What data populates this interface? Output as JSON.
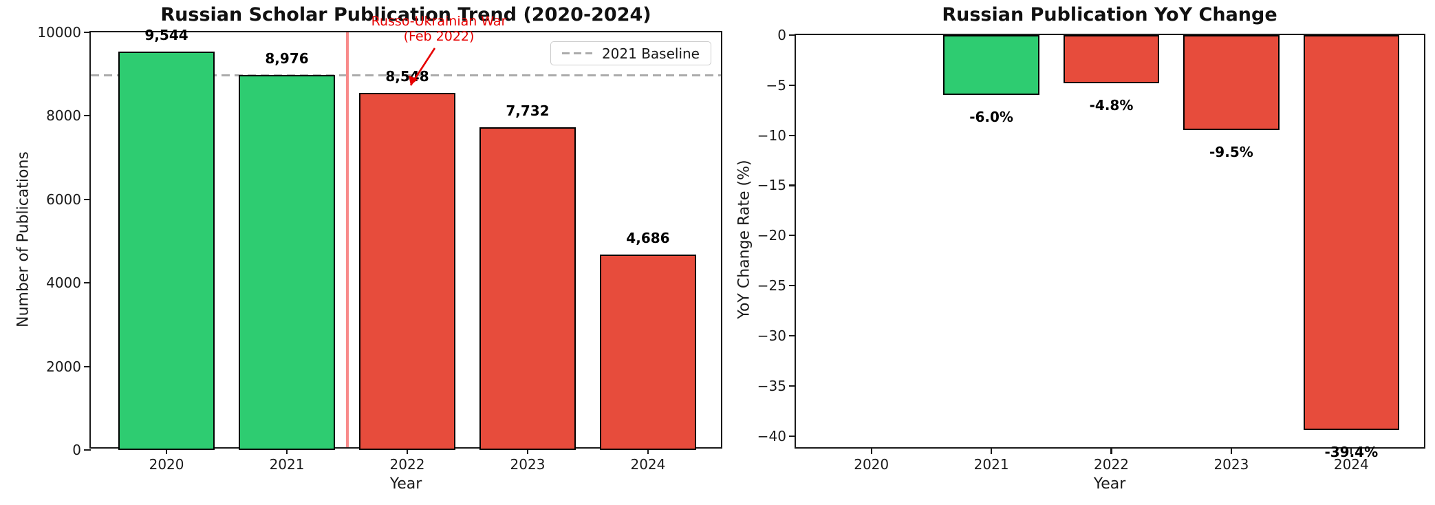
{
  "figure": {
    "background": "#ffffff",
    "accent_green": "#2ecc71",
    "accent_red": "#e74c3c",
    "annotation_red": "#e60000",
    "event_line_red": "#f88a8a",
    "baseline_gray": "#ababab"
  },
  "chart_data": [
    {
      "type": "bar",
      "title": "Russian Scholar Publication Trend (2020-2024)",
      "xlabel": "Year",
      "ylabel": "Number of Publications",
      "categories": [
        "2020",
        "2021",
        "2022",
        "2023",
        "2024"
      ],
      "values": [
        9544,
        8976,
        8548,
        7732,
        4686
      ],
      "value_labels": [
        "9,544",
        "8,976",
        "8,548",
        "7,732",
        "4,686"
      ],
      "bar_colors": [
        "#2ecc71",
        "#2ecc71",
        "#e74c3c",
        "#e74c3c",
        "#e74c3c"
      ],
      "ylim": [
        0,
        10000
      ],
      "yticks": [
        0,
        2000,
        4000,
        6000,
        8000,
        10000
      ],
      "ytick_labels": [
        "0",
        "2000",
        "4000",
        "6000",
        "8000",
        "10000"
      ],
      "grid": false,
      "legend": {
        "position": "upper right",
        "entries": [
          {
            "label": "2021 Baseline",
            "style": "dashed",
            "color": "#ababab"
          }
        ]
      },
      "baseline": {
        "value": 8976,
        "color": "#ababab",
        "style": "dashed"
      },
      "event_line": {
        "x": 1.5,
        "color": "#f88a8a"
      },
      "annotation": {
        "line1": "Russo-Ukrainian War",
        "line2": "(Feb 2022)",
        "color": "#e60000",
        "target_value": 8548
      }
    },
    {
      "type": "bar",
      "title": "Russian Publication YoY Change",
      "xlabel": "Year",
      "ylabel": "YoY Change Rate (%)",
      "categories": [
        "2020",
        "2021",
        "2022",
        "2023",
        "2024"
      ],
      "values": [
        null,
        -6.0,
        -4.8,
        -9.5,
        -39.4
      ],
      "value_labels": [
        "",
        "-6.0%",
        "-4.8%",
        "-9.5%",
        "-39.4%"
      ],
      "bar_colors": [
        null,
        "#2ecc71",
        "#e74c3c",
        "#e74c3c",
        "#e74c3c"
      ],
      "ylim": [
        -41.4,
        0
      ],
      "yticks": [
        0,
        -5,
        -10,
        -15,
        -20,
        -25,
        -30,
        -35,
        -40
      ],
      "ytick_labels": [
        "0",
        "−5",
        "−10",
        "−15",
        "−20",
        "−25",
        "−30",
        "−35",
        "−40"
      ],
      "grid": false
    }
  ]
}
